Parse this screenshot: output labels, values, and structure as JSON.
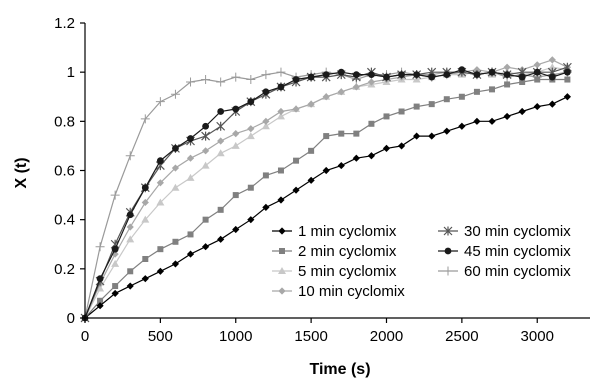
{
  "chart_data": {
    "type": "line",
    "xlabel": "Time (s)",
    "ylabel": "X (t)",
    "xlim": [
      0,
      3350
    ],
    "ylim": [
      0,
      1.2
    ],
    "xticks": [
      "0",
      "500",
      "1000",
      "1500",
      "2000",
      "2500",
      "3000"
    ],
    "yticks": [
      "0",
      "0.2",
      "0.4",
      "0.6",
      "0.8",
      "1",
      "1.2"
    ],
    "grid": false,
    "legend_position": "bottom-right",
    "series": [
      {
        "name": "1 min cyclomix",
        "color": "#000000",
        "marker": "diamond",
        "x": [
          0,
          100,
          200,
          300,
          400,
          500,
          600,
          700,
          800,
          900,
          1000,
          1100,
          1200,
          1300,
          1400,
          1500,
          1600,
          1700,
          1800,
          1900,
          2000,
          2100,
          2200,
          2300,
          2400,
          2500,
          2600,
          2700,
          2800,
          2900,
          3000,
          3100,
          3200
        ],
        "y": [
          0,
          0.05,
          0.1,
          0.13,
          0.16,
          0.19,
          0.22,
          0.26,
          0.29,
          0.32,
          0.36,
          0.4,
          0.45,
          0.48,
          0.52,
          0.56,
          0.6,
          0.62,
          0.65,
          0.66,
          0.69,
          0.7,
          0.74,
          0.74,
          0.76,
          0.78,
          0.8,
          0.8,
          0.82,
          0.84,
          0.86,
          0.87,
          0.9
        ]
      },
      {
        "name": "2 min cyclomix",
        "color": "#808080",
        "marker": "square",
        "x": [
          0,
          100,
          200,
          300,
          400,
          500,
          600,
          700,
          800,
          900,
          1000,
          1100,
          1200,
          1300,
          1400,
          1500,
          1600,
          1700,
          1800,
          1900,
          2000,
          2100,
          2200,
          2300,
          2400,
          2500,
          2600,
          2700,
          2800,
          2900,
          3000,
          3100,
          3200
        ],
        "y": [
          0,
          0.07,
          0.13,
          0.19,
          0.24,
          0.28,
          0.31,
          0.34,
          0.4,
          0.44,
          0.5,
          0.53,
          0.58,
          0.6,
          0.64,
          0.68,
          0.74,
          0.75,
          0.75,
          0.79,
          0.82,
          0.84,
          0.86,
          0.87,
          0.89,
          0.9,
          0.92,
          0.93,
          0.95,
          0.96,
          0.97,
          0.97,
          0.97
        ]
      },
      {
        "name": "5 min cyclomix",
        "color": "#c8c8c8",
        "marker": "triangle",
        "x": [
          0,
          100,
          200,
          300,
          400,
          500,
          600,
          700,
          800,
          900,
          1000,
          1100,
          1200,
          1300,
          1400,
          1500,
          1600,
          1700,
          1800,
          1900,
          2000,
          2100,
          2200,
          2300,
          2400,
          2500,
          2600,
          2700,
          2800,
          2900,
          3000,
          3100,
          3200
        ],
        "y": [
          0,
          0.12,
          0.22,
          0.32,
          0.4,
          0.47,
          0.53,
          0.57,
          0.62,
          0.67,
          0.7,
          0.74,
          0.78,
          0.82,
          0.85,
          0.87,
          0.9,
          0.92,
          0.94,
          0.95,
          0.96,
          0.97,
          0.97,
          0.98,
          0.99,
          0.99,
          1.0,
          0.99,
          1.0,
          0.99,
          1.0,
          1.02,
          1.01
        ]
      },
      {
        "name": "10 min cyclomix",
        "color": "#a8a8a8",
        "marker": "diamond",
        "x": [
          0,
          100,
          200,
          300,
          400,
          500,
          600,
          700,
          800,
          900,
          1000,
          1100,
          1200,
          1300,
          1400,
          1500,
          1600,
          1700,
          1800,
          1900,
          2000,
          2100,
          2200,
          2300,
          2400,
          2500,
          2600,
          2700,
          2800,
          2900,
          3000,
          3100,
          3200
        ],
        "y": [
          0,
          0.14,
          0.26,
          0.37,
          0.47,
          0.55,
          0.61,
          0.65,
          0.68,
          0.72,
          0.75,
          0.77,
          0.8,
          0.84,
          0.85,
          0.87,
          0.9,
          0.92,
          0.94,
          0.96,
          0.97,
          0.98,
          0.99,
          0.99,
          1.0,
          1.0,
          1.01,
          1.0,
          1.02,
          1.01,
          1.03,
          1.05,
          1.02
        ]
      },
      {
        "name": "30 min cyclomix",
        "color": "#555555",
        "marker": "star",
        "x": [
          0,
          100,
          200,
          300,
          400,
          500,
          600,
          700,
          800,
          900,
          1000,
          1100,
          1200,
          1300,
          1400,
          1500,
          1600,
          1700,
          1800,
          1900,
          2000,
          2100,
          2200,
          2300,
          2400,
          2500,
          2600,
          2700,
          2800,
          2900,
          3000,
          3100,
          3200
        ],
        "y": [
          0,
          0.15,
          0.3,
          0.43,
          0.53,
          0.62,
          0.69,
          0.72,
          0.74,
          0.78,
          0.84,
          0.88,
          0.91,
          0.94,
          0.96,
          0.98,
          0.98,
          0.99,
          0.98,
          1.0,
          0.98,
          0.99,
          0.99,
          1.0,
          1.0,
          1.0,
          0.99,
          1.0,
          0.99,
          1.0,
          1.0,
          1.0,
          1.02
        ]
      },
      {
        "name": "45 min cyclomix",
        "color": "#1a1a1a",
        "marker": "circle",
        "x": [
          0,
          100,
          200,
          300,
          400,
          500,
          600,
          700,
          800,
          900,
          1000,
          1100,
          1200,
          1300,
          1400,
          1500,
          1600,
          1700,
          1800,
          1900,
          2000,
          2100,
          2200,
          2300,
          2400,
          2500,
          2600,
          2700,
          2800,
          2900,
          3000,
          3100,
          3200
        ],
        "y": [
          0,
          0.16,
          0.28,
          0.42,
          0.53,
          0.64,
          0.69,
          0.73,
          0.78,
          0.84,
          0.85,
          0.88,
          0.92,
          0.94,
          0.97,
          0.98,
          0.99,
          1.0,
          0.99,
          0.99,
          0.98,
          0.99,
          0.99,
          0.98,
          0.99,
          1.01,
          0.99,
          1.0,
          0.99,
          0.98,
          1.0,
          0.98,
          1.0
        ]
      },
      {
        "name": "60 min cyclomix",
        "color": "#9a9a9a",
        "marker": "plus",
        "x": [
          0,
          100,
          200,
          300,
          400,
          500,
          600,
          700,
          800,
          900,
          1000,
          1100,
          1200,
          1300,
          1400,
          1500,
          1600,
          1700,
          1800,
          1900,
          2000,
          2100,
          2200,
          2300,
          2400,
          2500,
          2600,
          2700,
          2800,
          2900,
          3000,
          3100,
          3200
        ],
        "y": [
          0,
          0.29,
          0.5,
          0.66,
          0.81,
          0.88,
          0.91,
          0.96,
          0.97,
          0.96,
          0.98,
          0.97,
          0.99,
          1.0,
          0.98,
          0.99,
          1.0,
          0.99,
          0.97,
          0.99,
          0.99,
          1.0,
          0.99,
          0.98,
          0.99,
          1.0,
          0.99,
          1.0,
          0.98,
          0.99,
          0.98,
          0.99,
          1.0
        ]
      }
    ],
    "legend_columns": [
      [
        0,
        1,
        2,
        3
      ],
      [
        4,
        5,
        6
      ]
    ]
  }
}
